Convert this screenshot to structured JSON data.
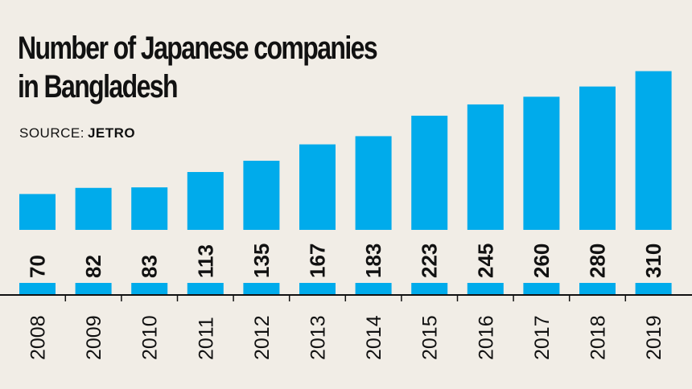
{
  "title_line1": "Number of Japanese companies",
  "title_line2": "in Bangladesh",
  "source_prefix": "SOURCE:",
  "source_name": "JETRO",
  "colors": {
    "bar": "#00abeb",
    "background": "#f1ede6",
    "axis": "#111111"
  },
  "chart_data": {
    "type": "bar",
    "title": "Number of Japanese companies in Bangladesh",
    "categories": [
      "2008",
      "2009",
      "2010",
      "2011",
      "2012",
      "2013",
      "2014",
      "2015",
      "2016",
      "2017",
      "2018",
      "2019"
    ],
    "values": [
      70,
      82,
      83,
      113,
      135,
      167,
      183,
      223,
      245,
      260,
      280,
      310
    ],
    "xlabel": "",
    "ylabel": "",
    "grid": false,
    "legend": "none",
    "data_labels": "rotated, inside bar base"
  }
}
